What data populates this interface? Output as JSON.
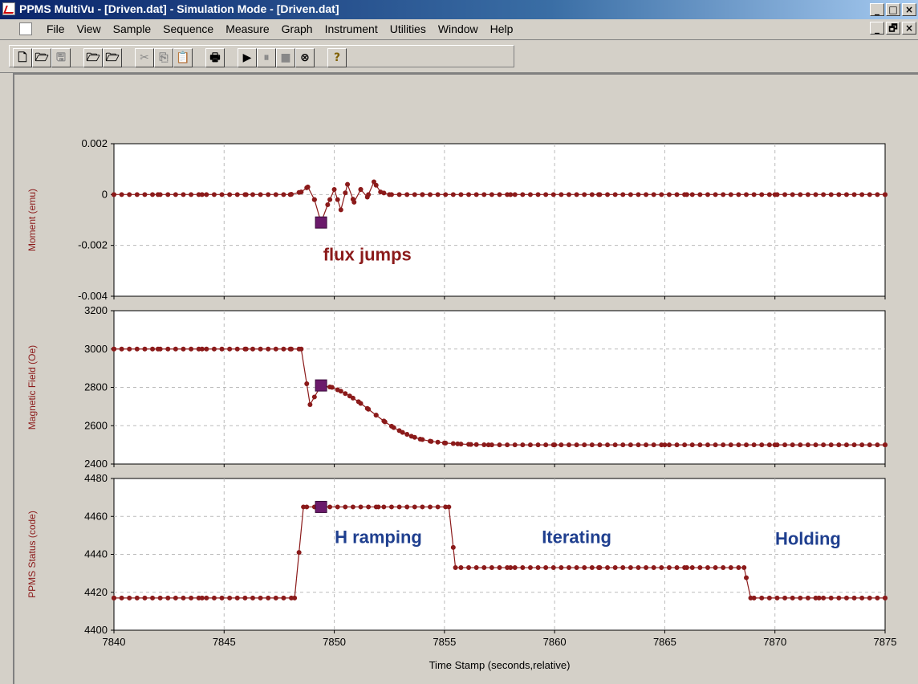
{
  "window": {
    "title": "PPMS MultiVu - [Driven.dat] - Simulation Mode - [Driven.dat]",
    "controls": {
      "minimize": "_",
      "maximize": "□",
      "close": "×",
      "restore": "🗗"
    }
  },
  "menu": [
    "File",
    "View",
    "Sample",
    "Sequence",
    "Measure",
    "Graph",
    "Instrument",
    "Utilities",
    "Window",
    "Help"
  ],
  "toolbar": [
    {
      "name": "new-file",
      "glyph": "🗋"
    },
    {
      "name": "open-file",
      "glyph": "🗁"
    },
    {
      "name": "save",
      "glyph": "🖫"
    },
    {
      "name": "open-data",
      "glyph": "🗁"
    },
    {
      "name": "open-sequence",
      "glyph": "🗁"
    },
    {
      "name": "cut",
      "glyph": "✂"
    },
    {
      "name": "copy",
      "glyph": "⎘"
    },
    {
      "name": "paste",
      "glyph": "📋"
    },
    {
      "name": "print",
      "glyph": "🖶"
    },
    {
      "name": "run",
      "glyph": "▶"
    },
    {
      "name": "pause",
      "glyph": "⏸"
    },
    {
      "name": "stop",
      "glyph": "■"
    },
    {
      "name": "abort",
      "glyph": "⊗"
    },
    {
      "name": "help",
      "glyph": "?"
    }
  ],
  "chart_data": [
    {
      "type": "line",
      "ylabel": "Moment (emu)",
      "xlim": [
        7840,
        7875
      ],
      "ylim": [
        -0.004,
        0.002
      ],
      "yticks": [
        "0.002",
        "0",
        "-0.002",
        "-0.004"
      ],
      "ytick_values": [
        0.002,
        0,
        -0.002,
        -0.004
      ],
      "series": [
        {
          "points": [
            [
              7840,
              0
            ],
            [
              7842,
              0
            ],
            [
              7844,
              0
            ],
            [
              7846,
              0
            ],
            [
              7848,
              0
            ],
            [
              7848.5,
              0.0001
            ],
            [
              7848.8,
              0.0003
            ],
            [
              7849.1,
              -0.0002
            ],
            [
              7849.4,
              -0.0011
            ],
            [
              7849.7,
              -0.0004
            ],
            [
              7850.0,
              0.0002
            ],
            [
              7850.3,
              -0.0006
            ],
            [
              7850.6,
              0.0004
            ],
            [
              7850.9,
              -0.0003
            ],
            [
              7851.2,
              0.0002
            ],
            [
              7851.5,
              -0.0001
            ],
            [
              7851.8,
              0.0005
            ],
            [
              7852.1,
              0.0001
            ],
            [
              7852.5,
              0
            ],
            [
              7854,
              0
            ],
            [
              7858,
              0
            ],
            [
              7862,
              0
            ],
            [
              7866,
              0
            ],
            [
              7870,
              0
            ],
            [
              7875,
              0
            ]
          ]
        }
      ],
      "marker": {
        "x": 7849.4,
        "y": -0.0011
      },
      "annotation": {
        "text": "flux jumps",
        "x": 7851.5,
        "y": -0.0026,
        "color": "#8b1a1a"
      }
    },
    {
      "type": "line",
      "ylabel": "Magnetic Field (Oe)",
      "xlim": [
        7840,
        7875
      ],
      "ylim": [
        2400,
        3200
      ],
      "yticks": [
        "3200",
        "3000",
        "2800",
        "2600",
        "2400"
      ],
      "ytick_values": [
        3200,
        3000,
        2800,
        2600,
        2400
      ],
      "series": [
        {
          "points": [
            [
              7840,
              3000
            ],
            [
              7842,
              3000
            ],
            [
              7844,
              3000
            ],
            [
              7846,
              3000
            ],
            [
              7848,
              3000
            ],
            [
              7848.5,
              3000
            ],
            [
              7848.9,
              2710
            ],
            [
              7849.4,
              2810
            ],
            [
              7849.9,
              2800
            ],
            [
              7850.3,
              2780
            ],
            [
              7850.7,
              2755
            ],
            [
              7851.1,
              2725
            ],
            [
              7851.5,
              2690
            ],
            [
              7851.9,
              2655
            ],
            [
              7852.3,
              2620
            ],
            [
              7852.7,
              2590
            ],
            [
              7853.1,
              2565
            ],
            [
              7853.5,
              2545
            ],
            [
              7853.9,
              2530
            ],
            [
              7854.4,
              2518
            ],
            [
              7855,
              2510
            ],
            [
              7855.6,
              2505
            ],
            [
              7856.2,
              2502
            ],
            [
              7857,
              2500
            ],
            [
              7860,
              2500
            ],
            [
              7865,
              2500
            ],
            [
              7870,
              2500
            ],
            [
              7875,
              2500
            ]
          ]
        }
      ],
      "marker": {
        "x": 7849.4,
        "y": 2810
      }
    },
    {
      "type": "line",
      "ylabel": "PPMS Status (code)",
      "xlabel": "Time Stamp (seconds,relative)",
      "xlim": [
        7840,
        7875
      ],
      "ylim": [
        4400,
        4480
      ],
      "yticks": [
        "4480",
        "4460",
        "4440",
        "4420",
        "4400"
      ],
      "ytick_values": [
        4480,
        4460,
        4440,
        4420,
        4400
      ],
      "xticks": [
        "7840",
        "7845",
        "7850",
        "7855",
        "7860",
        "7865",
        "7870",
        "7875"
      ],
      "xtick_values": [
        7840,
        7845,
        7850,
        7855,
        7860,
        7865,
        7870,
        7875
      ],
      "series": [
        {
          "points": [
            [
              7840,
              4417
            ],
            [
              7844,
              4417
            ],
            [
              7848.2,
              4417
            ],
            [
              7848.6,
              4465
            ],
            [
              7849.4,
              4465
            ],
            [
              7852,
              4465
            ],
            [
              7855.2,
              4465
            ],
            [
              7855.5,
              4433
            ],
            [
              7858,
              4433
            ],
            [
              7862,
              4433
            ],
            [
              7866,
              4433
            ],
            [
              7868.6,
              4433
            ],
            [
              7868.9,
              4417
            ],
            [
              7872,
              4417
            ],
            [
              7875,
              4417
            ]
          ]
        }
      ],
      "marker": {
        "x": 7849.4,
        "y": 4465
      },
      "annotations": [
        {
          "text": "H ramping",
          "x": 7852,
          "y": 4446,
          "color": "#1f3f8f"
        },
        {
          "text": "Iterating",
          "x": 7861,
          "y": 4446,
          "color": "#1f3f8f"
        },
        {
          "text": "Holding",
          "x": 7871.5,
          "y": 4445,
          "color": "#1f3f8f"
        }
      ]
    }
  ]
}
